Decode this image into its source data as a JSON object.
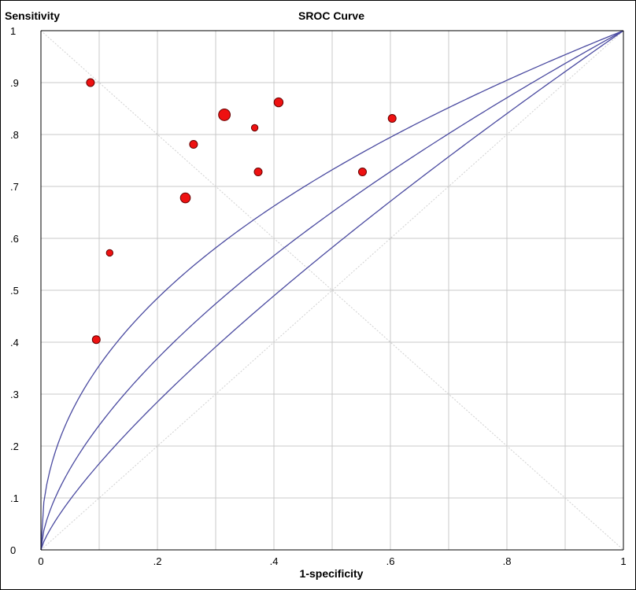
{
  "chart_data": {
    "type": "scatter",
    "title": "SROC Curve",
    "xlabel": "1-specificity",
    "ylabel": "Sensitivity",
    "xlim": [
      0,
      1
    ],
    "ylim": [
      0,
      1
    ],
    "grid": true,
    "x_ticks": [
      "0",
      ".2",
      ".4",
      ".6",
      ".8",
      "1"
    ],
    "y_ticks": [
      "0",
      ".1",
      ".2",
      ".3",
      ".4",
      ".5",
      ".6",
      ".7",
      ".8",
      ".9",
      "1"
    ],
    "points": [
      {
        "x": 0.085,
        "y": 0.9,
        "weight": 1.0
      },
      {
        "x": 0.118,
        "y": 0.572,
        "weight": 0.7
      },
      {
        "x": 0.095,
        "y": 0.405,
        "weight": 1.0
      },
      {
        "x": 0.248,
        "y": 0.678,
        "weight": 1.6
      },
      {
        "x": 0.262,
        "y": 0.781,
        "weight": 1.0
      },
      {
        "x": 0.315,
        "y": 0.838,
        "weight": 2.2
      },
      {
        "x": 0.367,
        "y": 0.813,
        "weight": 0.7
      },
      {
        "x": 0.373,
        "y": 0.728,
        "weight": 1.0
      },
      {
        "x": 0.408,
        "y": 0.862,
        "weight": 1.3
      },
      {
        "x": 0.552,
        "y": 0.728,
        "weight": 1.0
      },
      {
        "x": 0.603,
        "y": 0.831,
        "weight": 1.0
      }
    ],
    "sroc_curves": [
      {
        "role": "upper",
        "auc_param": 0.45
      },
      {
        "role": "summary",
        "auc_param": 0.62
      },
      {
        "role": "lower",
        "auc_param": 0.78
      }
    ],
    "colors": {
      "points": "#ee1111",
      "point_outline": "#660000",
      "curve": "#4a4aa0",
      "grid": "#c8c8c8",
      "diagonal": "#d0d0d0"
    }
  }
}
